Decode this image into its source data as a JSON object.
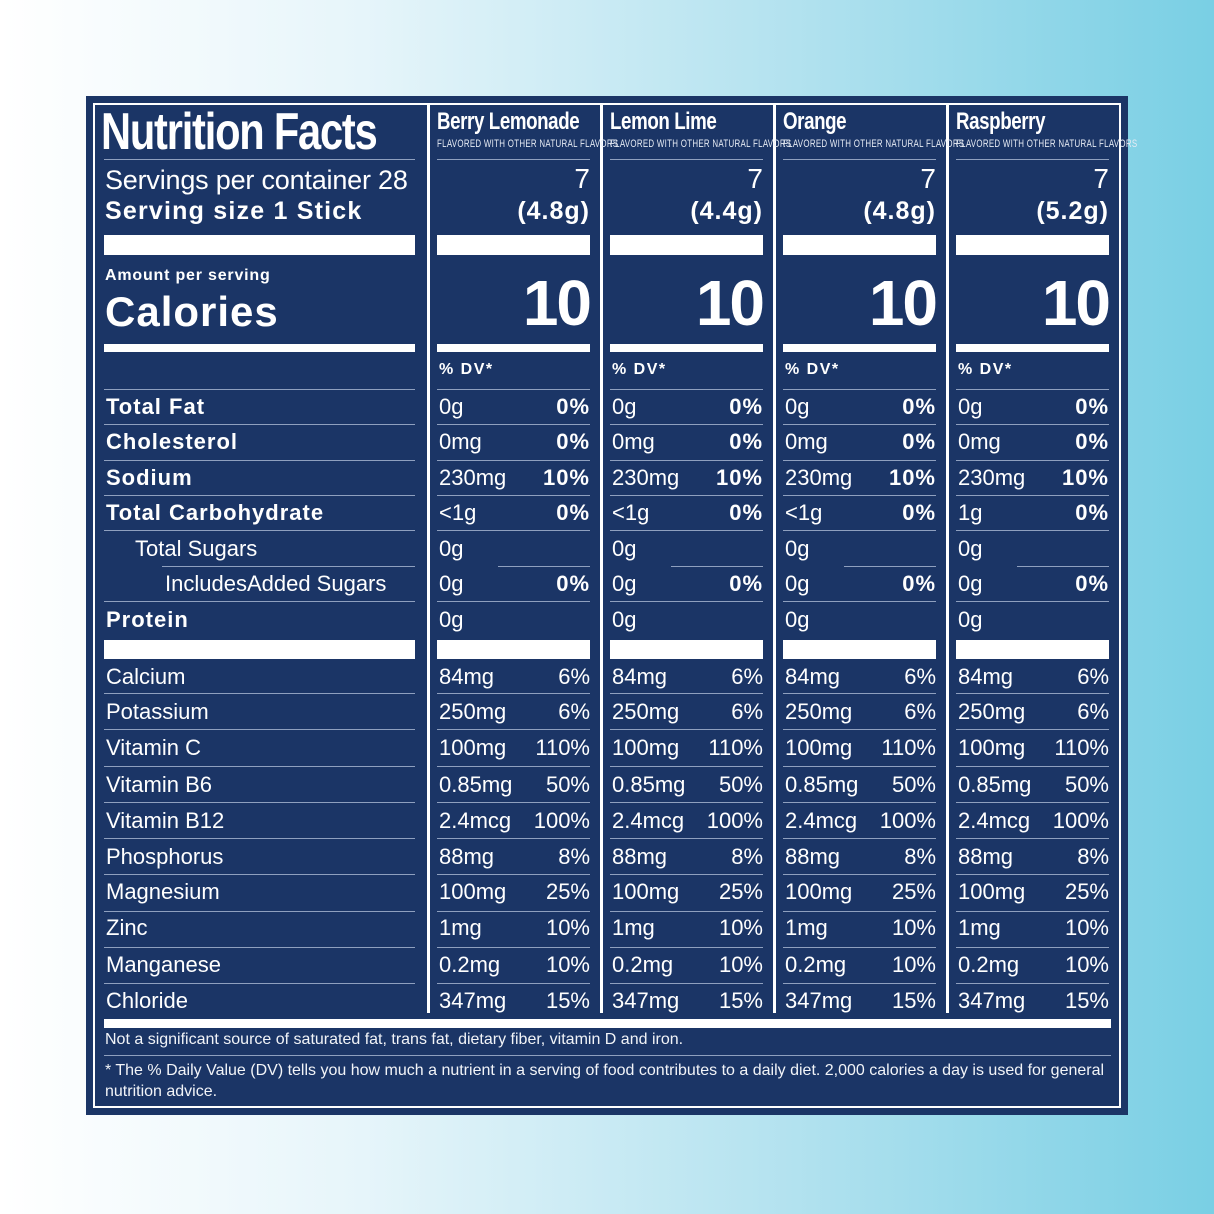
{
  "label": {
    "title": "Nutrition Facts",
    "servings_per_container": "Servings per container 28",
    "serving_size": "Serving size  1 Stick",
    "amount_per_serving": "Amount per serving",
    "calories_label": "Calories",
    "dv_header": "% DV*"
  },
  "nutrients": [
    {
      "label": "Total Fat",
      "style": "bold"
    },
    {
      "label": "Cholesterol",
      "style": "bold"
    },
    {
      "label": "Sodium",
      "style": "bold"
    },
    {
      "label": "Total Carbohydrate",
      "style": "bold"
    },
    {
      "label": "Total Sugars",
      "style": "indent1"
    },
    {
      "label": "IncludesAdded Sugars",
      "style": "indent2"
    },
    {
      "label": "Protein",
      "style": "bold"
    }
  ],
  "vitamins": [
    {
      "label": "Calcium"
    },
    {
      "label": "Potassium"
    },
    {
      "label": "Vitamin C"
    },
    {
      "label": "Vitamin B6"
    },
    {
      "label": "Vitamin B12"
    },
    {
      "label": "Phosphorus"
    },
    {
      "label": "Magnesium"
    },
    {
      "label": "Zinc"
    },
    {
      "label": "Manganese"
    },
    {
      "label": "Chloride"
    }
  ],
  "flavors": [
    {
      "name": "Berry Lemonade",
      "subtitle": "FLAVORED WITH OTHER NATURAL FLAVORS",
      "servings": "7",
      "size": "(4.8g)",
      "calories": "10",
      "nutrients": [
        {
          "amount": "0g",
          "dv": "0%"
        },
        {
          "amount": "0mg",
          "dv": "0%"
        },
        {
          "amount": "230mg",
          "dv": "10%"
        },
        {
          "amount": "<1g",
          "dv": "0%"
        },
        {
          "amount": "0g",
          "dv": ""
        },
        {
          "amount": "0g",
          "dv": "0%"
        },
        {
          "amount": "0g",
          "dv": ""
        }
      ],
      "vitamins": [
        {
          "amount": "84mg",
          "dv": "6%"
        },
        {
          "amount": "250mg",
          "dv": "6%"
        },
        {
          "amount": "100mg",
          "dv": "110%"
        },
        {
          "amount": "0.85mg",
          "dv": "50%"
        },
        {
          "amount": "2.4mcg",
          "dv": "100%"
        },
        {
          "amount": "88mg",
          "dv": "8%"
        },
        {
          "amount": "100mg",
          "dv": "25%"
        },
        {
          "amount": "1mg",
          "dv": "10%"
        },
        {
          "amount": "0.2mg",
          "dv": "10%"
        },
        {
          "amount": "347mg",
          "dv": "15%"
        }
      ]
    },
    {
      "name": "Lemon Lime",
      "subtitle": "FLAVORED WITH OTHER NATURAL FLAVORS",
      "servings": "7",
      "size": "(4.4g)",
      "calories": "10",
      "nutrients": [
        {
          "amount": "0g",
          "dv": "0%"
        },
        {
          "amount": "0mg",
          "dv": "0%"
        },
        {
          "amount": "230mg",
          "dv": "10%"
        },
        {
          "amount": "<1g",
          "dv": "0%"
        },
        {
          "amount": "0g",
          "dv": ""
        },
        {
          "amount": "0g",
          "dv": "0%"
        },
        {
          "amount": "0g",
          "dv": ""
        }
      ],
      "vitamins": [
        {
          "amount": "84mg",
          "dv": "6%"
        },
        {
          "amount": "250mg",
          "dv": "6%"
        },
        {
          "amount": "100mg",
          "dv": "110%"
        },
        {
          "amount": "0.85mg",
          "dv": "50%"
        },
        {
          "amount": "2.4mcg",
          "dv": "100%"
        },
        {
          "amount": "88mg",
          "dv": "8%"
        },
        {
          "amount": "100mg",
          "dv": "25%"
        },
        {
          "amount": "1mg",
          "dv": "10%"
        },
        {
          "amount": "0.2mg",
          "dv": "10%"
        },
        {
          "amount": "347mg",
          "dv": "15%"
        }
      ]
    },
    {
      "name": "Orange",
      "subtitle": "FLAVORED WITH OTHER NATURAL FLAVORS",
      "servings": "7",
      "size": "(4.8g)",
      "calories": "10",
      "nutrients": [
        {
          "amount": "0g",
          "dv": "0%"
        },
        {
          "amount": "0mg",
          "dv": "0%"
        },
        {
          "amount": "230mg",
          "dv": "10%"
        },
        {
          "amount": "<1g",
          "dv": "0%"
        },
        {
          "amount": "0g",
          "dv": ""
        },
        {
          "amount": "0g",
          "dv": "0%"
        },
        {
          "amount": "0g",
          "dv": ""
        }
      ],
      "vitamins": [
        {
          "amount": "84mg",
          "dv": "6%"
        },
        {
          "amount": "250mg",
          "dv": "6%"
        },
        {
          "amount": "100mg",
          "dv": "110%"
        },
        {
          "amount": "0.85mg",
          "dv": "50%"
        },
        {
          "amount": "2.4mcg",
          "dv": "100%"
        },
        {
          "amount": "88mg",
          "dv": "8%"
        },
        {
          "amount": "100mg",
          "dv": "25%"
        },
        {
          "amount": "1mg",
          "dv": "10%"
        },
        {
          "amount": "0.2mg",
          "dv": "10%"
        },
        {
          "amount": "347mg",
          "dv": "15%"
        }
      ]
    },
    {
      "name": "Raspberry",
      "subtitle": "FLAVORED WITH OTHER NATURAL FLAVORS",
      "servings": "7",
      "size": "(5.2g)",
      "calories": "10",
      "nutrients": [
        {
          "amount": "0g",
          "dv": "0%"
        },
        {
          "amount": "0mg",
          "dv": "0%"
        },
        {
          "amount": "230mg",
          "dv": "10%"
        },
        {
          "amount": "1g",
          "dv": "0%"
        },
        {
          "amount": "0g",
          "dv": ""
        },
        {
          "amount": "0g",
          "dv": "0%"
        },
        {
          "amount": "0g",
          "dv": ""
        }
      ],
      "vitamins": [
        {
          "amount": "84mg",
          "dv": "6%"
        },
        {
          "amount": "250mg",
          "dv": "6%"
        },
        {
          "amount": "100mg",
          "dv": "110%"
        },
        {
          "amount": "0.85mg",
          "dv": "50%"
        },
        {
          "amount": "2.4mcg",
          "dv": "100%"
        },
        {
          "amount": "88mg",
          "dv": "8%"
        },
        {
          "amount": "100mg",
          "dv": "25%"
        },
        {
          "amount": "1mg",
          "dv": "10%"
        },
        {
          "amount": "0.2mg",
          "dv": "10%"
        },
        {
          "amount": "347mg",
          "dv": "15%"
        }
      ]
    }
  ],
  "footnotes": {
    "not_significant": "Not a significant source of saturated fat, trans fat, dietary fiber, vitamin D and iron.",
    "dv_explanation": "* The % Daily Value (DV) tells you how much a nutrient in a serving of food contributes to a daily diet. 2,000 calories a day is used for general nutrition advice."
  },
  "colors": {
    "panel": "#1b3566",
    "text": "#ffffff",
    "rule": "#8fa0bf",
    "background_left": "#ffffff",
    "background_right": "#79cfe4"
  }
}
